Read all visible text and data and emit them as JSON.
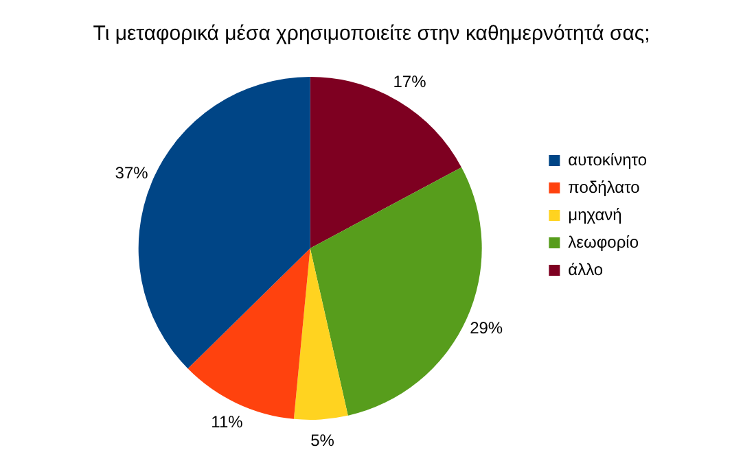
{
  "chart_data": {
    "type": "pie",
    "title": "Τι μεταφορικά μέσα χρησιμοποιείτε στην καθημερνότητά σας;",
    "categories": [
      "αυτοκίνητο",
      "ποδήλατο",
      "μηχανή",
      "λεωφορίο",
      "άλλο"
    ],
    "values": [
      37,
      11,
      5,
      29,
      17
    ],
    "value_labels": [
      "37%",
      "11%",
      "5%",
      "29%",
      "17%"
    ],
    "colors": [
      "#004586",
      "#ff420e",
      "#ffd320",
      "#579d1c",
      "#7e0021"
    ],
    "legend": "right"
  }
}
